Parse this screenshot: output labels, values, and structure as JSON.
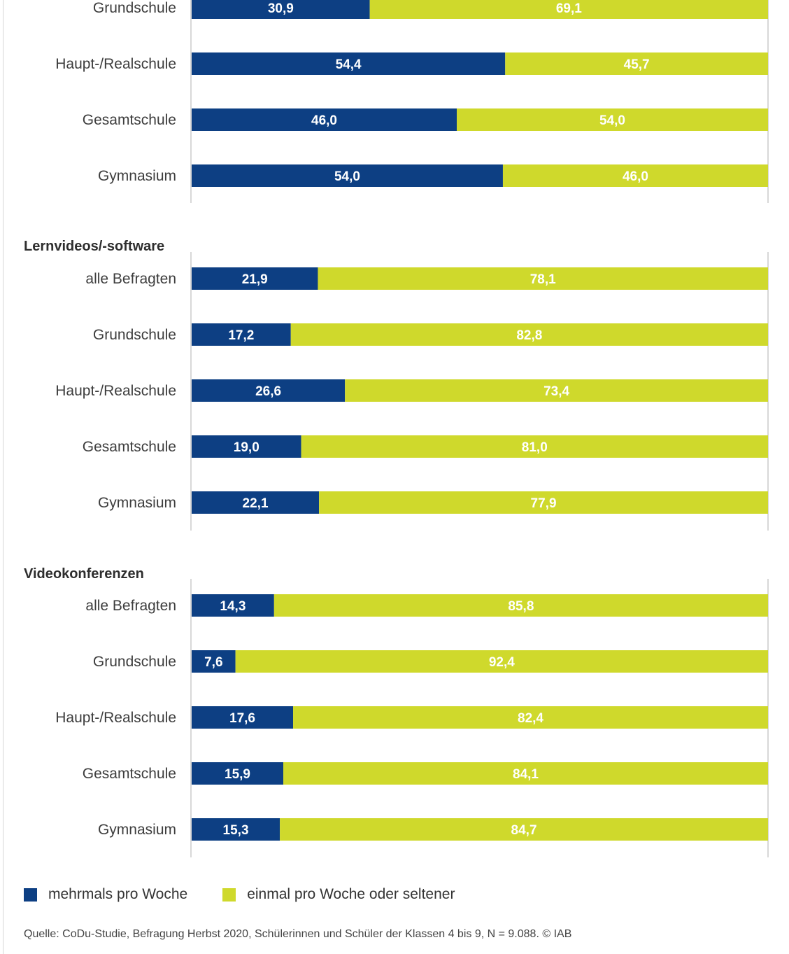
{
  "colors": {
    "series1": "#0d3f83",
    "series2": "#cfd92c",
    "axis": "#bdbdbd"
  },
  "chart_data": {
    "type": "bar",
    "orientation": "horizontal",
    "stacked": true,
    "xlim": [
      0,
      100
    ],
    "series": [
      {
        "name": "mehrmals pro Woche"
      },
      {
        "name": "einmal pro Woche oder seltener"
      }
    ],
    "groups": [
      {
        "title": "",
        "categories": [
          "Grundschule",
          "Haupt-/Realschule",
          "Gesamtschule",
          "Gymnasium"
        ],
        "values": [
          [
            30.9,
            69.1
          ],
          [
            54.4,
            45.7
          ],
          [
            46.0,
            54.0
          ],
          [
            54.0,
            46.0
          ]
        ],
        "labels": [
          [
            "30,9",
            "69,1"
          ],
          [
            "54,4",
            "45,7"
          ],
          [
            "46,0",
            "54,0"
          ],
          [
            "54,0",
            "46,0"
          ]
        ]
      },
      {
        "title": "Lernvideos/-software",
        "categories": [
          "alle Befragten",
          "Grundschule",
          "Haupt-/Realschule",
          "Gesamtschule",
          "Gymnasium"
        ],
        "values": [
          [
            21.9,
            78.1
          ],
          [
            17.2,
            82.8
          ],
          [
            26.6,
            73.4
          ],
          [
            19.0,
            81.0
          ],
          [
            22.1,
            77.9
          ]
        ],
        "labels": [
          [
            "21,9",
            "78,1"
          ],
          [
            "17,2",
            "82,8"
          ],
          [
            "26,6",
            "73,4"
          ],
          [
            "19,0",
            "81,0"
          ],
          [
            "22,1",
            "77,9"
          ]
        ]
      },
      {
        "title": "Videokonferenzen",
        "categories": [
          "alle Befragten",
          "Grundschule",
          "Haupt-/Realschule",
          "Gesamtschule",
          "Gymnasium"
        ],
        "values": [
          [
            14.3,
            85.8
          ],
          [
            7.6,
            92.4
          ],
          [
            17.6,
            82.4
          ],
          [
            15.9,
            84.1
          ],
          [
            15.3,
            84.7
          ]
        ],
        "labels": [
          [
            "14,3",
            "85,8"
          ],
          [
            "7,6",
            "92,4"
          ],
          [
            "17,6",
            "82,4"
          ],
          [
            "15,9",
            "84,1"
          ],
          [
            "15,3",
            "84,7"
          ]
        ]
      }
    ]
  },
  "legend": {
    "item1": "mehrmals pro Woche",
    "item2": "einmal pro Woche oder seltener"
  },
  "source": "Quelle: CoDu-Studie, Befragung Herbst 2020, Schülerinnen und Schüler der Klassen 4 bis 9, N = 9.088. © IAB"
}
